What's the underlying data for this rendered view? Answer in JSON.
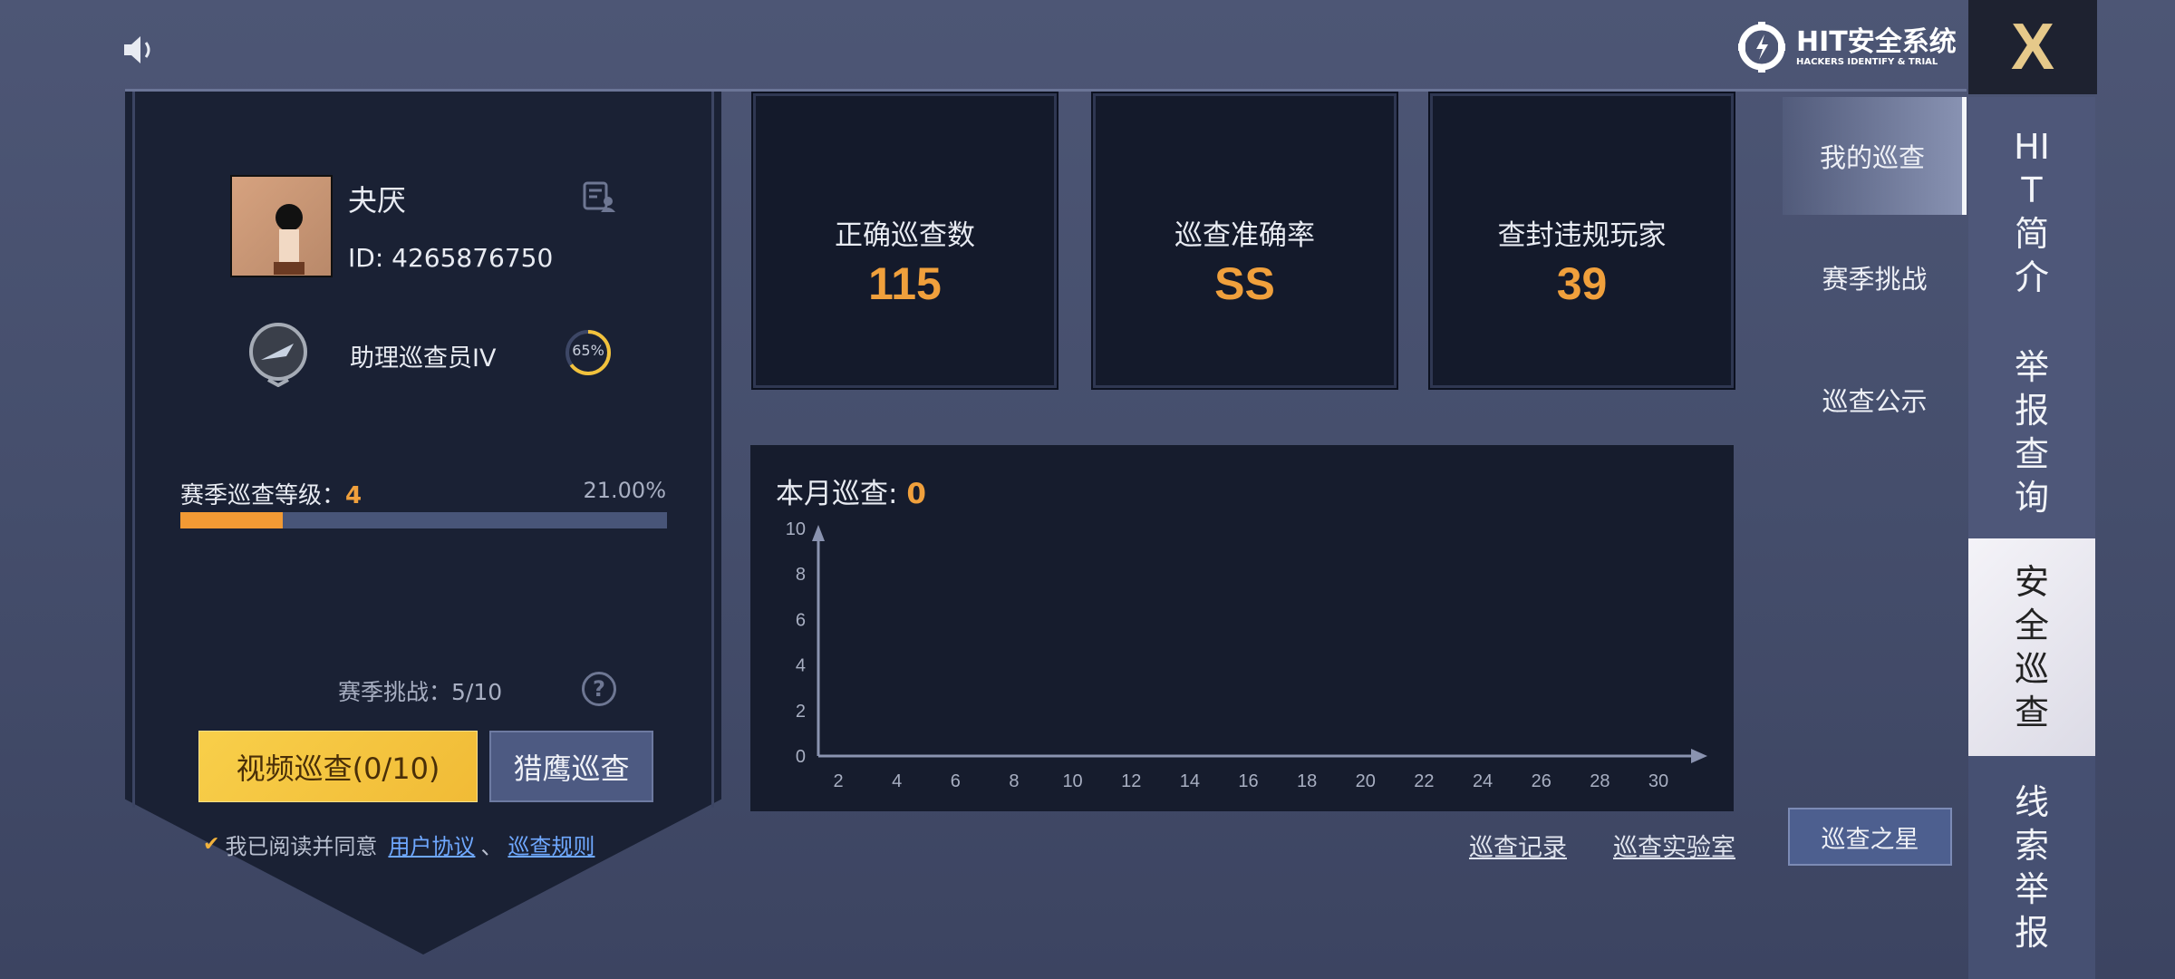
{
  "header": {
    "sound_icon": "speaker-icon",
    "logo_main": "HIT安全系统",
    "logo_sub": "HACKERS IDENTIFY & TRIAL",
    "close_icon": "x-logo-icon"
  },
  "profile": {
    "name": "夬厌",
    "id": "ID: 4265876750",
    "rank": "助理巡查员IV",
    "rank_progress": "65%",
    "rank_progress_value": 65,
    "season_level_label": "赛季巡查等级：",
    "season_level": "4",
    "season_percent": "21.00%",
    "season_percent_value": 21,
    "season_challenge": "赛季挑战：5/10",
    "video_button": "视频巡查(0/10)",
    "hawk_button": "猎鹰巡查",
    "agree_text": "我已阅读并同意",
    "agree_link1": "用户协议",
    "agree_sep": "、",
    "agree_link2": "巡查规则"
  },
  "stats": [
    {
      "label": "正确巡查数",
      "value": "115"
    },
    {
      "label": "巡查准确率",
      "value": "SS"
    },
    {
      "label": "查封违规玩家",
      "value": "39"
    }
  ],
  "monthly": {
    "label": "本月巡查:",
    "value": "0"
  },
  "chart_data": {
    "type": "line",
    "x_ticks": [
      "2",
      "4",
      "6",
      "8",
      "10",
      "12",
      "14",
      "16",
      "18",
      "20",
      "22",
      "24",
      "26",
      "28",
      "30"
    ],
    "y_ticks": [
      "0",
      "2",
      "4",
      "6",
      "8",
      "10"
    ],
    "ylim": [
      0,
      10
    ],
    "xlim": [
      0,
      31
    ],
    "series": [],
    "grid": false
  },
  "links": {
    "records": "巡查记录",
    "lab": "巡查实验室"
  },
  "subnav": {
    "items": [
      {
        "label": "我的巡查",
        "active": true
      },
      {
        "label": "赛季挑战"
      },
      {
        "label": "巡查公示"
      }
    ],
    "star_button": "巡查之星"
  },
  "tabs": [
    {
      "label": "HIT简介"
    },
    {
      "label": "举报查询"
    },
    {
      "label": "安全巡查",
      "active": true
    },
    {
      "label": "线索举报"
    }
  ],
  "colors": {
    "accent": "#f0a03c",
    "button_yellow": "#f5c542",
    "link": "#6fa8ff"
  }
}
